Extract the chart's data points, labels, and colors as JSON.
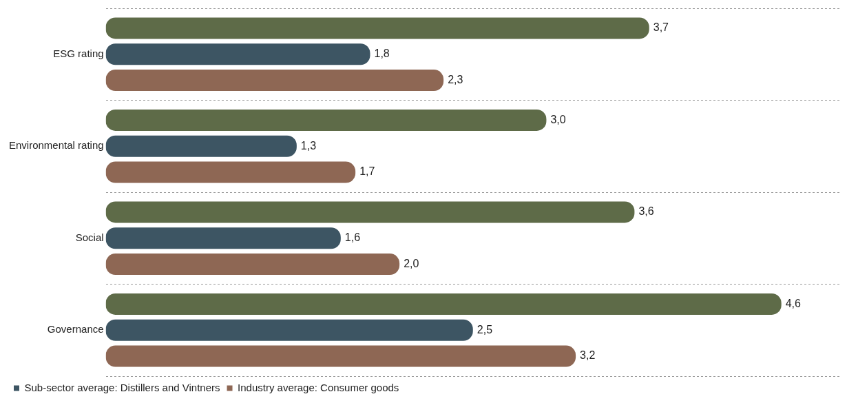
{
  "chart_data": {
    "type": "bar",
    "orientation": "horizontal",
    "categories": [
      "ESG rating",
      "Environmental rating",
      "Social",
      "Governance"
    ],
    "series": [
      {
        "color": "#5e6b48",
        "values": [
          3.7,
          3.0,
          3.6,
          4.6
        ],
        "value_labels": [
          "3,7",
          "3,0",
          "3,6",
          "4,6"
        ]
      },
      {
        "name": "Sub-sector average: Distillers and Vintners",
        "color": "#3d5563",
        "values": [
          1.8,
          1.3,
          1.6,
          2.5
        ],
        "value_labels": [
          "1,8",
          "1,3",
          "1,6",
          "2,5"
        ]
      },
      {
        "name": "Industry average: Consumer goods",
        "color": "#8e6754",
        "values": [
          2.3,
          1.7,
          2.0,
          3.2
        ],
        "value_labels": [
          "2,3",
          "1,7",
          "2,0",
          "3,2"
        ]
      }
    ],
    "xlim": [
      0,
      5
    ],
    "tick_labels": "y",
    "grid": "y",
    "legend": "bottom left"
  }
}
